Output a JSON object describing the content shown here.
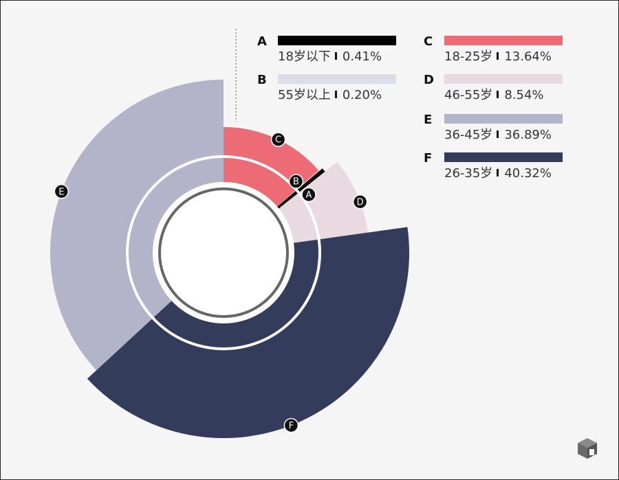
{
  "chart_data": {
    "type": "pie",
    "variant": "rose",
    "title": "",
    "segments": [
      {
        "key": "A",
        "label": "18岁以下",
        "value": 0.41,
        "value_text": "0.41%",
        "color": "#000000"
      },
      {
        "key": "B",
        "label": "55岁以上",
        "value": 0.2,
        "value_text": "0.20%",
        "color": "#dddde8"
      },
      {
        "key": "C",
        "label": "18-25岁",
        "value": 13.64,
        "value_text": "13.64%",
        "color": "#ec6b74"
      },
      {
        "key": "D",
        "label": "46-55岁",
        "value": 8.54,
        "value_text": "8.54%",
        "color": "#e8dae0"
      },
      {
        "key": "E",
        "label": "36-45岁",
        "value": 36.89,
        "value_text": "36.89%",
        "color": "#b3b3c9"
      },
      {
        "key": "F",
        "label": "26-35岁",
        "value": 40.32,
        "value_text": "40.32%",
        "color": "#343c5b"
      }
    ],
    "legend_position": "top-right"
  }
}
